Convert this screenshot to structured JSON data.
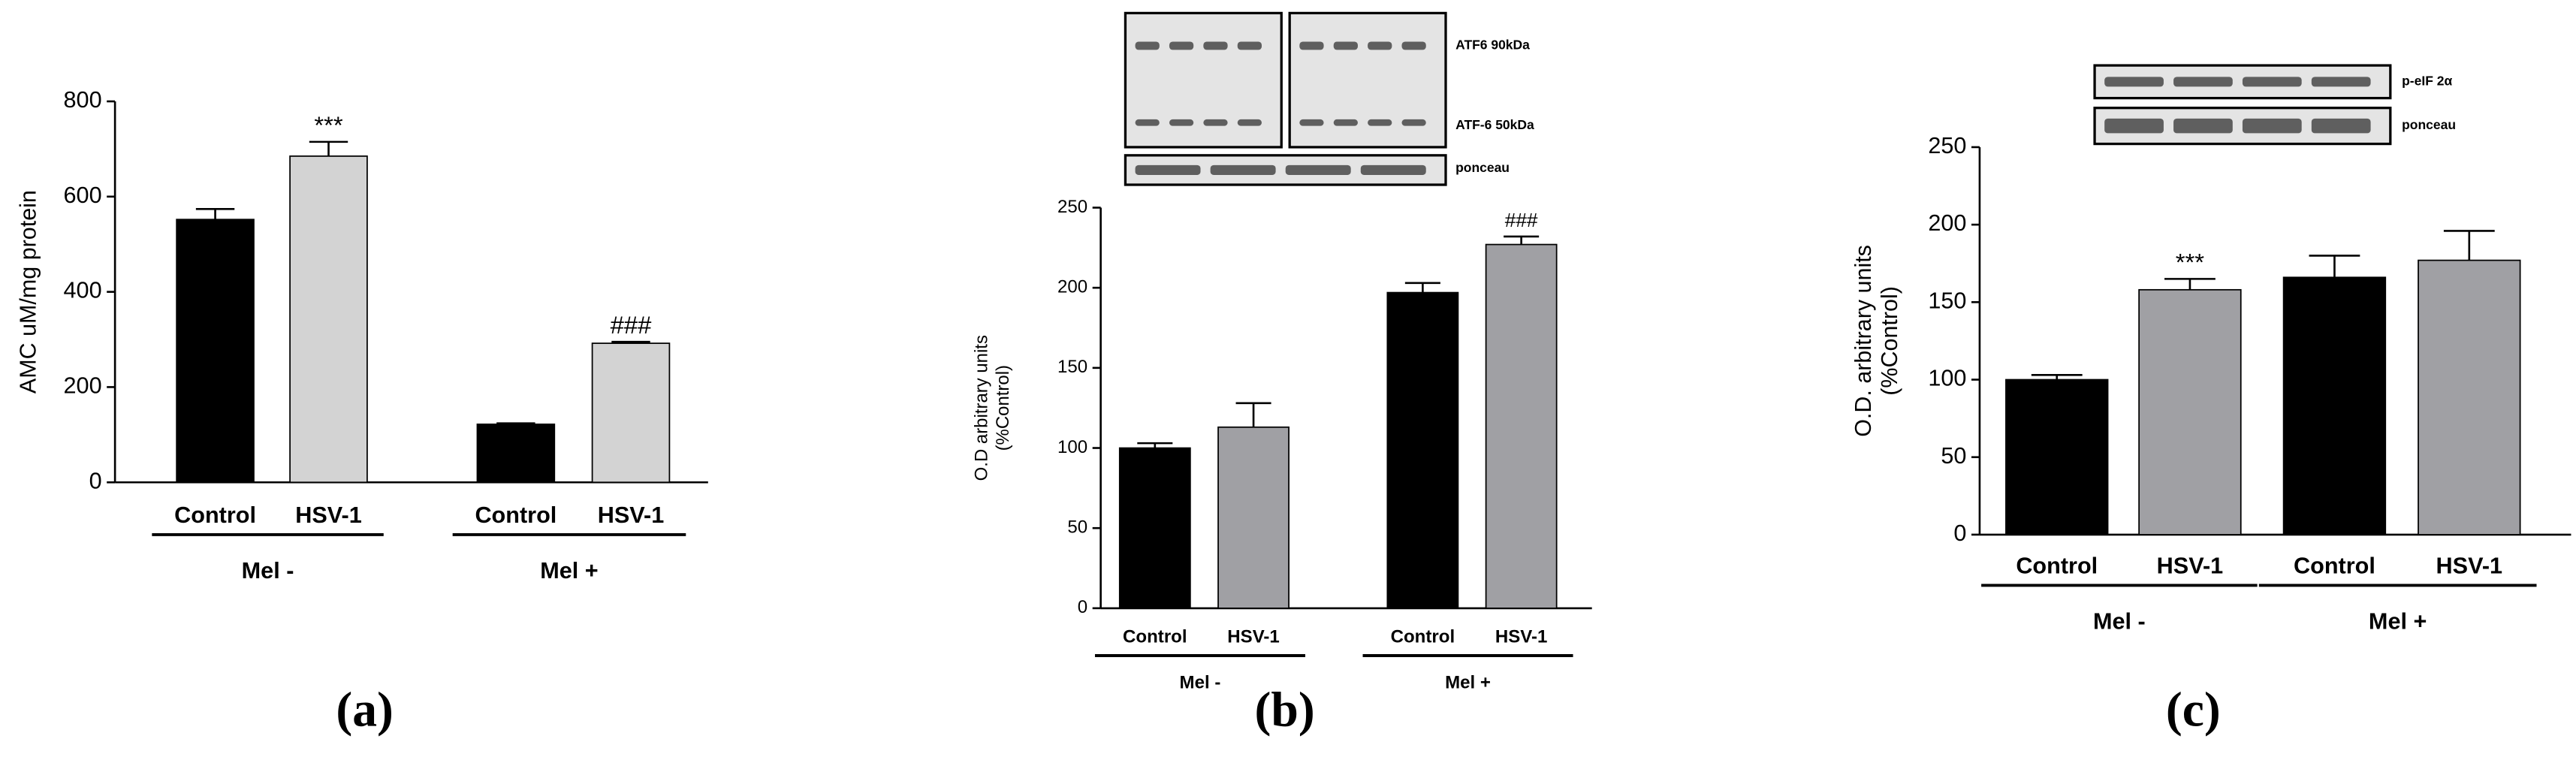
{
  "chart_data": [
    {
      "type": "bar",
      "panel_label": "(a)",
      "ylabel": [
        "AMC uM/mg protein"
      ],
      "categories": [
        "Control",
        "HSV-1",
        "Control",
        "HSV-1"
      ],
      "groups": [
        "Mel -",
        "Mel +"
      ],
      "values": [
        552,
        685,
        122,
        292
      ],
      "errors": [
        22,
        30,
        2,
        3
      ],
      "colors": [
        "#000000",
        "#d3d3d3",
        "#000000",
        "#d3d3d3"
      ],
      "bar_labels": [
        null,
        "***",
        null,
        "###"
      ],
      "ylim": [
        0,
        800
      ],
      "yticks": [
        0,
        200,
        400,
        600,
        800
      ]
    },
    {
      "type": "bar",
      "panel_label": "(b)",
      "ylabel": [
        "O.D arbitrary units",
        "(%Control)"
      ],
      "blot_labels": [
        "ATF6 90kDa",
        "ATF-6 50kDa",
        "ponceau"
      ],
      "categories": [
        "Control",
        "HSV-1",
        "Control",
        "HSV-1"
      ],
      "groups": [
        "Mel -",
        "Mel +"
      ],
      "values": [
        100,
        113,
        197,
        227
      ],
      "errors": [
        3,
        15,
        6,
        5
      ],
      "colors": [
        "#000000",
        "#a0a0a4",
        "#000000",
        "#a0a0a4"
      ],
      "bar_labels": [
        null,
        null,
        null,
        "###"
      ],
      "ylim": [
        0,
        250
      ],
      "yticks": [
        0,
        50,
        100,
        150,
        200,
        250
      ]
    },
    {
      "type": "bar",
      "panel_label": "(c)",
      "ylabel": [
        "O.D. arbitrary units",
        "(%Control)"
      ],
      "blot_labels": [
        "p-eIF 2α",
        "ponceau"
      ],
      "categories": [
        "Control",
        "HSV-1",
        "Control",
        "HSV-1"
      ],
      "groups": [
        "Mel -",
        "Mel +"
      ],
      "values": [
        100,
        158,
        166,
        177
      ],
      "errors": [
        3,
        7,
        14,
        19
      ],
      "colors": [
        "#000000",
        "#a0a0a4",
        "#000000",
        "#a0a0a4"
      ],
      "bar_labels": [
        null,
        "***",
        null,
        null
      ],
      "ylim": [
        0,
        250
      ],
      "yticks": [
        0,
        50,
        100,
        150,
        200,
        250
      ]
    }
  ]
}
